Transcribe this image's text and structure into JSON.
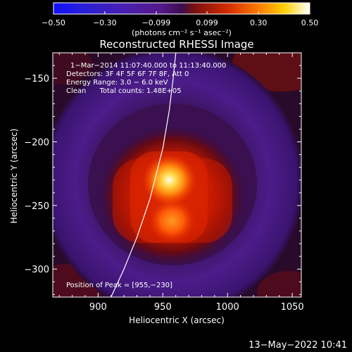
{
  "chart_data": {
    "type": "heatmap",
    "title": "Reconstructed RHESSI Image",
    "xlabel": "Heliocentric X (arcsec)",
    "ylabel": "Heliocentric Y (arcsec)",
    "xlim": [
      865,
      1057
    ],
    "ylim": [
      -322,
      -130
    ],
    "x_ticks": [
      "900",
      "950",
      "1000",
      "1050"
    ],
    "x_tick_values": [
      900,
      950,
      1000,
      1050
    ],
    "y_ticks": [
      "−150",
      "−200",
      "−250",
      "−300"
    ],
    "y_tick_values": [
      -150,
      -200,
      -250,
      -300
    ],
    "colorbar": {
      "ticks": [
        "−0.50",
        "−0.30",
        "−0.099",
        "0.099",
        "0.30",
        "0.50"
      ],
      "tick_values": [
        -0.5,
        -0.3,
        -0.099,
        0.099,
        0.3,
        0.5
      ],
      "range": [
        -0.5,
        0.5
      ],
      "units": "(photons cm⁻² s⁻¹ asec⁻²)"
    },
    "annotations": [
      "1−Mar−2014 11:07:40.000 to 11:13:40.000",
      "Detectors: 3F 4F 5F 6F 7F 8F, Att 0",
      "Energy Range: 3.0 − 6.0 keV",
      "Clean      Total counts: 1.48E+05",
      "Position of Peak = [955,−230]"
    ],
    "peak": {
      "x": 955,
      "y": -230,
      "value": 0.5
    },
    "secondary_source": {
      "x": 957,
      "y": -262,
      "value": 0.28
    },
    "limb_curve": {
      "x": [
        910,
        920,
        930,
        940,
        950,
        955,
        958,
        960
      ],
      "y": [
        -322,
        -300,
        -275,
        -245,
        -205,
        -175,
        -150,
        -130
      ]
    },
    "timestamp": "13−May−2022 10:41"
  }
}
